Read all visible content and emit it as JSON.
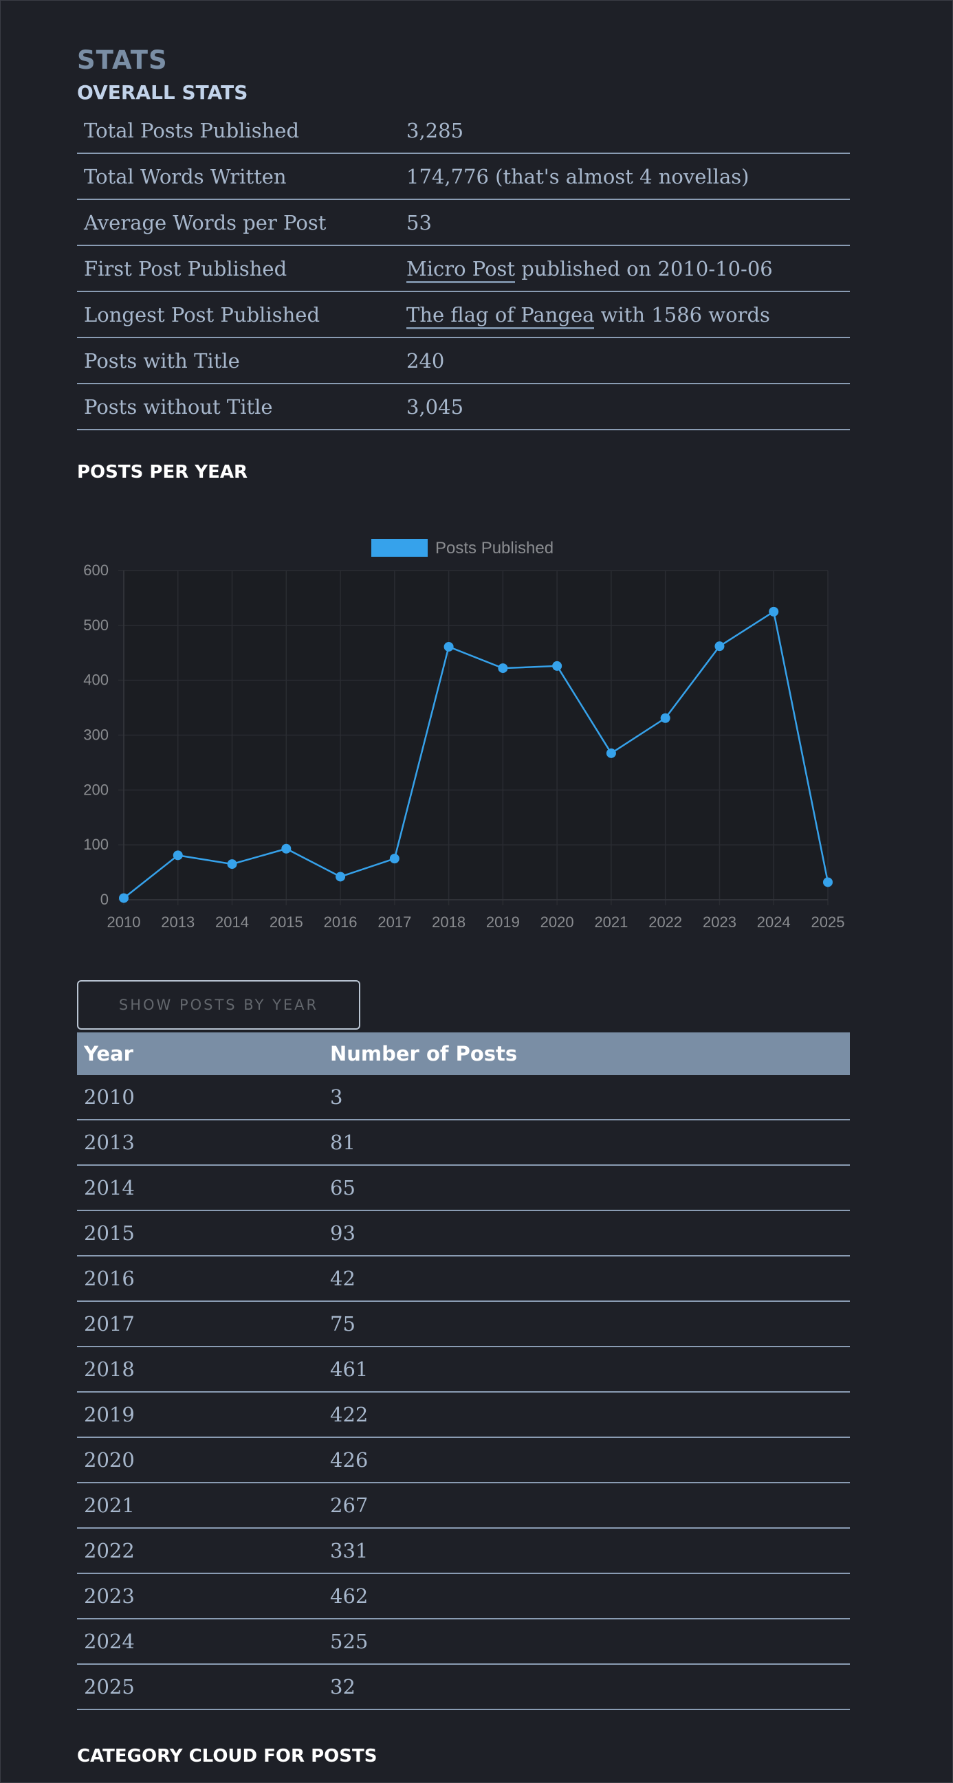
{
  "page": {
    "title": "STATS"
  },
  "overall": {
    "heading": "OVERALL STATS",
    "rows": [
      {
        "label": "Total Posts Published",
        "value": "3,285"
      },
      {
        "label": "Total Words Written",
        "value": "174,776 (that's almost 4 novellas)"
      },
      {
        "label": "Average Words per Post",
        "value": "53"
      },
      {
        "label": "First Post Published",
        "link": "Micro Post",
        "suffix": " published on 2010-10-06"
      },
      {
        "label": "Longest Post Published",
        "link": "The flag of Pangea",
        "suffix": " with 1586 words"
      },
      {
        "label": "Posts with Title",
        "value": "240"
      },
      {
        "label": "Posts without Title",
        "value": "3,045"
      }
    ]
  },
  "posts_per_year": {
    "heading": "POSTS PER YEAR",
    "button_label": "SHOW POSTS BY YEAR",
    "table_headers": {
      "year": "Year",
      "count": "Number of Posts"
    },
    "rows": [
      {
        "year": "2010",
        "count": "3"
      },
      {
        "year": "2013",
        "count": "81"
      },
      {
        "year": "2014",
        "count": "65"
      },
      {
        "year": "2015",
        "count": "93"
      },
      {
        "year": "2016",
        "count": "42"
      },
      {
        "year": "2017",
        "count": "75"
      },
      {
        "year": "2018",
        "count": "461"
      },
      {
        "year": "2019",
        "count": "422"
      },
      {
        "year": "2020",
        "count": "426"
      },
      {
        "year": "2021",
        "count": "267"
      },
      {
        "year": "2022",
        "count": "331"
      },
      {
        "year": "2023",
        "count": "462"
      },
      {
        "year": "2024",
        "count": "525"
      },
      {
        "year": "2025",
        "count": "32"
      }
    ]
  },
  "category_cloud": {
    "heading": "CATEGORY CLOUD FOR POSTS"
  },
  "colors": {
    "background": "#1e2027",
    "text": "#a7b7cc",
    "accent": "#36a2eb",
    "header_band": "#7a8ea5"
  },
  "chart_data": {
    "type": "line",
    "title": "",
    "xlabel": "",
    "ylabel": "",
    "legend_position": "top",
    "grid": true,
    "x": [
      "2010",
      "2013",
      "2014",
      "2015",
      "2016",
      "2017",
      "2018",
      "2019",
      "2020",
      "2021",
      "2022",
      "2023",
      "2024",
      "2025"
    ],
    "yticks": [
      0,
      100,
      200,
      300,
      400,
      500,
      600
    ],
    "ylim": [
      0,
      600
    ],
    "series": [
      {
        "name": "Posts Published",
        "color": "#36a2eb",
        "values": [
          3,
          81,
          65,
          93,
          42,
          75,
          461,
          422,
          426,
          267,
          331,
          462,
          525,
          32
        ]
      }
    ]
  }
}
